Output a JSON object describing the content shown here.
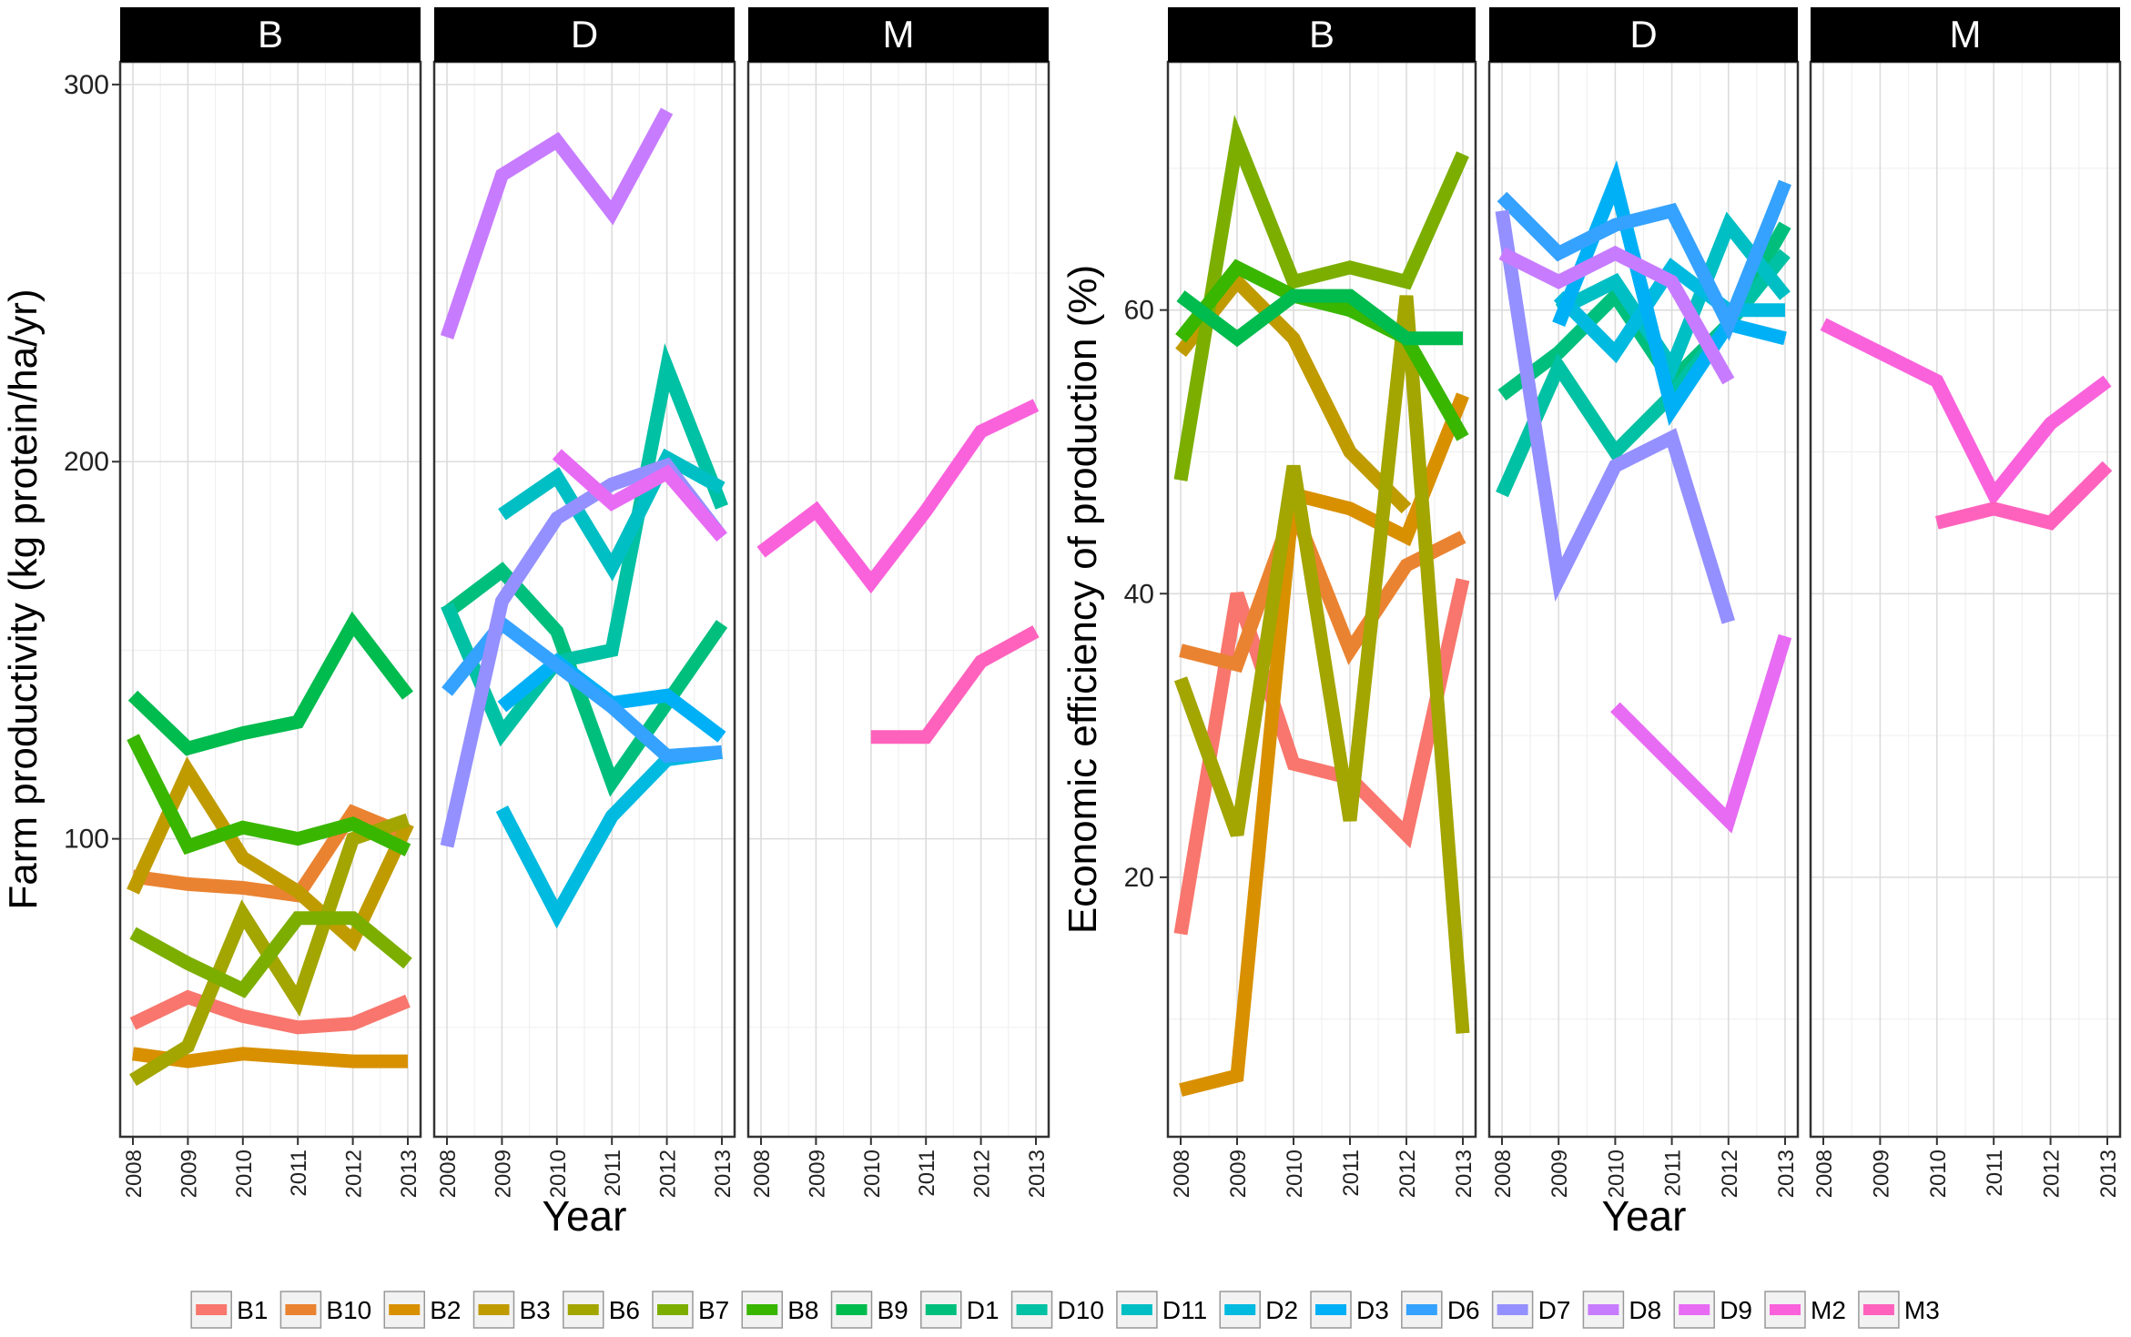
{
  "chart_data": [
    {
      "type": "line",
      "facet_var": "B, D, M",
      "panels": [
        "B",
        "D",
        "M"
      ],
      "ylabel": "Farm productivity (kg protein/ha/yr)",
      "xlabel": "Year",
      "x": [
        2008,
        2009,
        2010,
        2011,
        2012,
        2013
      ],
      "ylim": [
        21,
        306
      ],
      "yticks": [
        100,
        200,
        300
      ],
      "series": [
        {
          "name": "B1",
          "panel": "B",
          "values": [
            51,
            58,
            53,
            50,
            51,
            57
          ]
        },
        {
          "name": "B10",
          "panel": "B",
          "values": [
            90,
            88,
            87,
            85,
            107,
            101
          ]
        },
        {
          "name": "B2",
          "panel": "B",
          "values": [
            43,
            41,
            43,
            42,
            41,
            41
          ]
        },
        {
          "name": "B3",
          "panel": "B",
          "values": [
            86,
            118,
            95,
            86,
            73,
            104
          ]
        },
        {
          "name": "B6",
          "panel": "B",
          "values": [
            36,
            45,
            80,
            57,
            100,
            105
          ]
        },
        {
          "name": "B7",
          "panel": "B",
          "values": [
            75,
            67,
            60,
            79,
            79,
            67
          ]
        },
        {
          "name": "B8",
          "panel": "B",
          "values": [
            127,
            98,
            103,
            100,
            104,
            97
          ]
        },
        {
          "name": "B9",
          "panel": "B",
          "values": [
            138,
            124,
            128,
            131,
            157,
            138
          ]
        },
        {
          "name": "D1",
          "panel": "D",
          "values": [
            160,
            171,
            155,
            115,
            136,
            157
          ]
        },
        {
          "name": "D10",
          "panel": "D",
          "values": [
            162,
            128,
            147,
            150,
            225,
            188
          ]
        },
        {
          "name": "D11",
          "panel": "D",
          "values": [
            null,
            186,
            196,
            172,
            201,
            193
          ]
        },
        {
          "name": "D2",
          "panel": "D",
          "values": [
            null,
            108,
            80,
            106,
            121,
            123
          ]
        },
        {
          "name": "D3",
          "panel": "D",
          "values": [
            null,
            135,
            147,
            136,
            138,
            127
          ]
        },
        {
          "name": "D6",
          "panel": "D",
          "values": [
            139,
            157,
            146,
            135,
            122,
            123
          ]
        },
        {
          "name": "D7",
          "panel": "D",
          "values": [
            98,
            163,
            185,
            194,
            199,
            180
          ]
        },
        {
          "name": "D8",
          "panel": "D",
          "values": [
            233,
            276,
            285,
            266,
            293,
            null
          ]
        },
        {
          "name": "D9",
          "panel": "D",
          "values": [
            null,
            null,
            202,
            189,
            197,
            180
          ]
        },
        {
          "name": "M2",
          "panel": "M",
          "values": [
            176,
            187,
            168,
            187,
            208,
            215
          ]
        },
        {
          "name": "M3",
          "panel": "M",
          "values": [
            null,
            null,
            127,
            127,
            147,
            155
          ]
        }
      ]
    },
    {
      "type": "line",
      "facet_var": "B, D, M",
      "panels": [
        "B",
        "D",
        "M"
      ],
      "ylabel": "Economic efficiency of production (%)",
      "xlabel": "Year",
      "x": [
        2008,
        2009,
        2010,
        2011,
        2012,
        2013
      ],
      "ylim": [
        1.7,
        77.5
      ],
      "yticks": [
        20,
        40,
        60
      ],
      "series": [
        {
          "name": "B1",
          "panel": "B",
          "values": [
            16,
            40,
            28,
            27,
            23,
            41
          ]
        },
        {
          "name": "B10",
          "panel": "B",
          "values": [
            36,
            35,
            46,
            36,
            42,
            44
          ]
        },
        {
          "name": "B2",
          "panel": "B",
          "values": [
            5,
            6,
            47,
            46,
            44,
            54
          ]
        },
        {
          "name": "B3",
          "panel": "B",
          "values": [
            57,
            62,
            58,
            50,
            46,
            null
          ]
        },
        {
          "name": "B6",
          "panel": "B",
          "values": [
            34,
            23,
            49,
            24,
            61,
            9
          ]
        },
        {
          "name": "B7",
          "panel": "B",
          "values": [
            48,
            72,
            62,
            63,
            62,
            71
          ]
        },
        {
          "name": "B8",
          "panel": "B",
          "values": [
            58,
            63,
            61,
            60,
            58,
            51
          ]
        },
        {
          "name": "B9",
          "panel": "B",
          "values": [
            61,
            58,
            61,
            61,
            58,
            58
          ]
        },
        {
          "name": "D1",
          "panel": "D",
          "values": [
            54,
            57,
            61,
            55,
            59,
            66
          ]
        },
        {
          "name": "D10",
          "panel": "D",
          "values": [
            47,
            56,
            50,
            54,
            59,
            64
          ]
        },
        {
          "name": "D11",
          "panel": "D",
          "values": [
            null,
            60,
            62,
            56,
            66,
            61
          ]
        },
        {
          "name": "D2",
          "panel": "D",
          "values": [
            null,
            61,
            57,
            63,
            60,
            60
          ]
        },
        {
          "name": "D3",
          "panel": "D",
          "values": [
            null,
            59,
            69,
            53,
            59,
            58
          ]
        },
        {
          "name": "D6",
          "panel": "D",
          "values": [
            68,
            64,
            66,
            67,
            59,
            69
          ]
        },
        {
          "name": "D7",
          "panel": "D",
          "values": [
            67,
            41,
            49,
            51,
            38,
            null
          ]
        },
        {
          "name": "D8",
          "panel": "D",
          "values": [
            64,
            62,
            64,
            62,
            55,
            null
          ]
        },
        {
          "name": "D9",
          "panel": "D",
          "values": [
            null,
            null,
            32,
            28,
            24,
            37
          ]
        },
        {
          "name": "M2",
          "panel": "M",
          "values": [
            59,
            57,
            55,
            47,
            52,
            55
          ]
        },
        {
          "name": "M3",
          "panel": "M",
          "values": [
            null,
            null,
            45,
            46,
            45,
            49
          ]
        }
      ]
    }
  ],
  "legend": {
    "items": [
      "B1",
      "B10",
      "B2",
      "B3",
      "B6",
      "B7",
      "B8",
      "B9",
      "D1",
      "D10",
      "D11",
      "D2",
      "D3",
      "D6",
      "D7",
      "D8",
      "D9",
      "M2",
      "M3"
    ],
    "colors": {
      "B1": "#F8766D",
      "B10": "#EA8331",
      "B2": "#D89000",
      "B3": "#C09B00",
      "B6": "#A3A500",
      "B7": "#7CAE00",
      "B8": "#39B600",
      "B9": "#00BB4E",
      "D1": "#00BF7D",
      "D10": "#00C1A3",
      "D11": "#00BFC4",
      "D2": "#00BAE0",
      "D3": "#00B0F6",
      "D6": "#35A2FF",
      "D7": "#9590FF",
      "D8": "#C77CFF",
      "D9": "#E76BF3",
      "M2": "#FA62DB",
      "M3": "#FF62BC"
    }
  }
}
